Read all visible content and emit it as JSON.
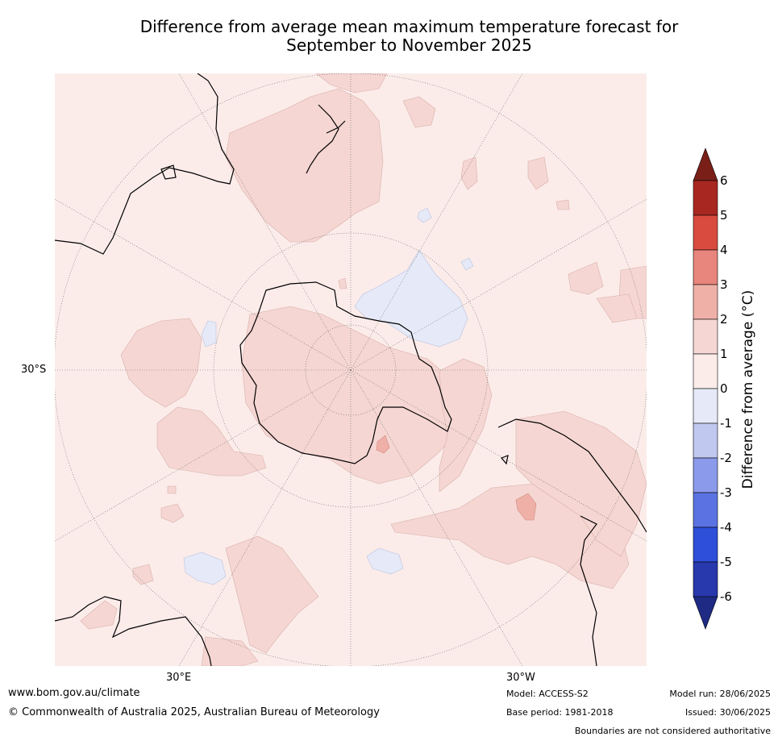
{
  "title_line1": "Difference from average mean maximum temperature forecast for",
  "title_line2": "September to November 2025",
  "lat_label": "30°S",
  "lon_labels": {
    "east": "30°E",
    "west": "30°W"
  },
  "colorbar": {
    "title": "Difference from average (°C)",
    "ticks": [
      "6",
      "5",
      "4",
      "3",
      "2",
      "1",
      "0",
      "-1",
      "-2",
      "-3",
      "-4",
      "-5",
      "-6"
    ],
    "colors": {
      "above_6": "#7a1f17",
      "5_to_6": "#a82821",
      "4_to_5": "#d94b3f",
      "3_to_4": "#e8857c",
      "2_to_3": "#efb0a8",
      "1_to_2": "#f5d6d2",
      "0_to_1": "#fbecea",
      "m1_to_0": "#e6eaf8",
      "m2_to_m1": "#c0c8f0",
      "m3_to_m2": "#8b9aea",
      "m4_to_m3": "#5b73e2",
      "m5_to_m4": "#2e4fd9",
      "m6_to_m5": "#2838ad",
      "below_m6": "#1e2a84"
    }
  },
  "footer": {
    "website": "www.bom.gov.au/climate",
    "copyright": "© Commonwealth of Australia 2025, Australian Bureau of Meteorology",
    "model": "Model: ACCESS-S2",
    "base_period": "Base period: 1981-2018",
    "model_run": "Model run: 28/06/2025",
    "issued": "Issued: 30/06/2025",
    "disclaimer": "Boundaries are not considered authoritative"
  }
}
